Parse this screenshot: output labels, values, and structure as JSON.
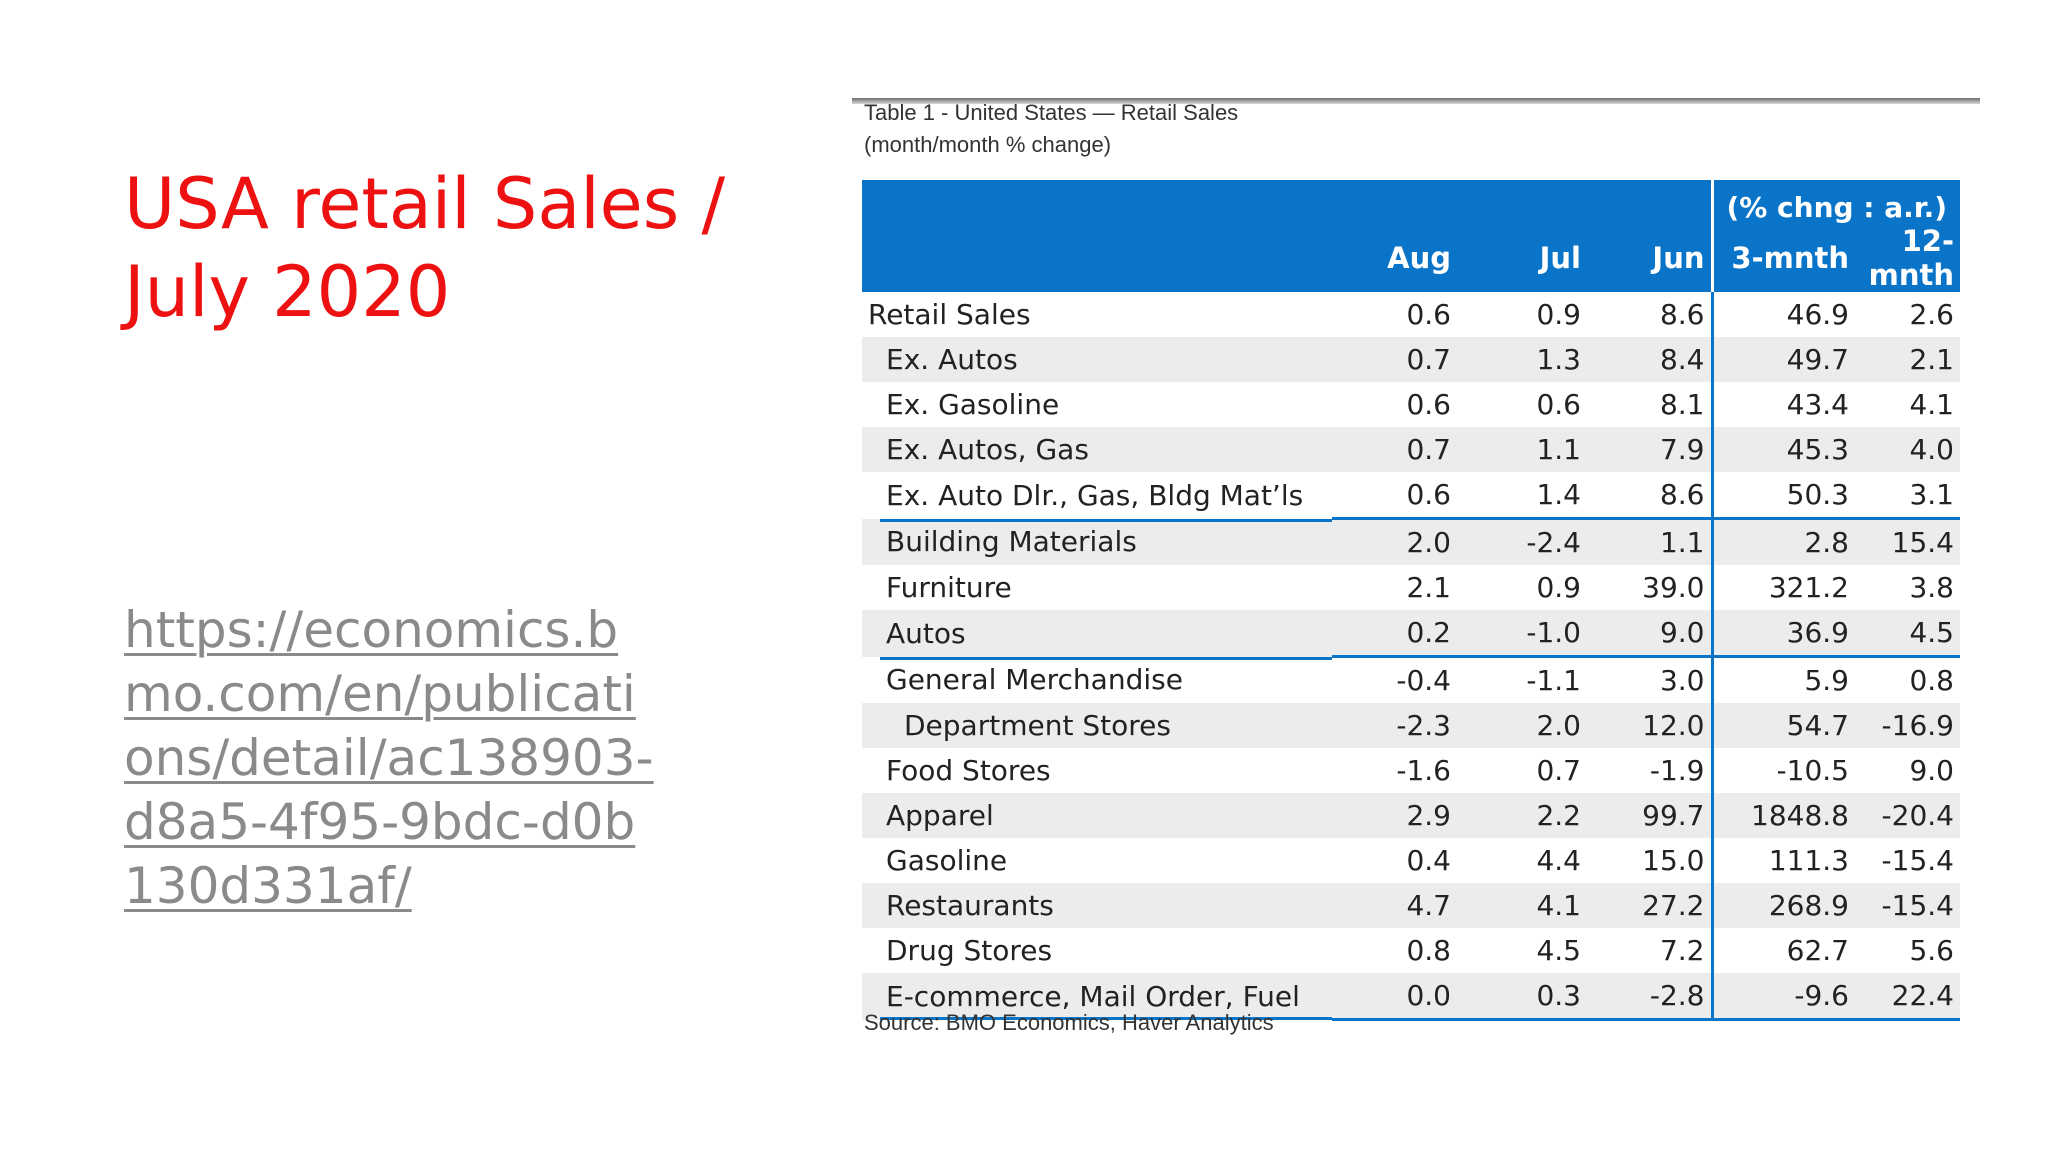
{
  "slide": {
    "title": "USA retail Sales / July 2020",
    "link": "https://economics.bmo.com/en/publications/detail/ac138903-d8a5-4f95-9bdc-d0b130d331af/"
  },
  "figure": {
    "caption_line1": "Table 1 - United States — Retail Sales",
    "caption_line2": "(month/month % change)",
    "source": "Source: BMO Economics, Haver Analytics"
  },
  "table": {
    "group_header": "(% chng : a.r.)",
    "columns": [
      "Aug",
      "Jul",
      "Jun",
      "3-mnth",
      "12-mnth"
    ],
    "rows": [
      {
        "label": "Retail Sales",
        "values": [
          "0.6",
          "0.9",
          "8.6",
          "46.9",
          "2.6"
        ]
      },
      {
        "label": "Ex. Autos",
        "values": [
          "0.7",
          "1.3",
          "8.4",
          "49.7",
          "2.1"
        ]
      },
      {
        "label": "Ex. Gasoline",
        "values": [
          "0.6",
          "0.6",
          "8.1",
          "43.4",
          "4.1"
        ]
      },
      {
        "label": "Ex. Autos, Gas",
        "values": [
          "0.7",
          "1.1",
          "7.9",
          "45.3",
          "4.0"
        ]
      },
      {
        "label": "Ex. Auto Dlr., Gas, Bldg Mat’ls",
        "values": [
          "0.6",
          "1.4",
          "8.6",
          "50.3",
          "3.1"
        ]
      },
      {
        "label": "Building Materials",
        "values": [
          "2.0",
          "-2.4",
          "1.1",
          "2.8",
          "15.4"
        ]
      },
      {
        "label": "Furniture",
        "values": [
          "2.1",
          "0.9",
          "39.0",
          "321.2",
          "3.8"
        ]
      },
      {
        "label": "Autos",
        "values": [
          "0.2",
          "-1.0",
          "9.0",
          "36.9",
          "4.5"
        ]
      },
      {
        "label": "General Merchandise",
        "values": [
          "-0.4",
          "-1.1",
          "3.0",
          "5.9",
          "0.8"
        ]
      },
      {
        "label": "Department Stores",
        "values": [
          "-2.3",
          "2.0",
          "12.0",
          "54.7",
          "-16.9"
        ]
      },
      {
        "label": "Food Stores",
        "values": [
          "-1.6",
          "0.7",
          "-1.9",
          "-10.5",
          "9.0"
        ]
      },
      {
        "label": "Apparel",
        "values": [
          "2.9",
          "2.2",
          "99.7",
          "1848.8",
          "-20.4"
        ]
      },
      {
        "label": "Gasoline",
        "values": [
          "0.4",
          "4.4",
          "15.0",
          "111.3",
          "-15.4"
        ]
      },
      {
        "label": "Restaurants",
        "values": [
          "4.7",
          "4.1",
          "27.2",
          "268.9",
          "-15.4"
        ]
      },
      {
        "label": "Drug Stores",
        "values": [
          "0.8",
          "4.5",
          "7.2",
          "62.7",
          "5.6"
        ]
      },
      {
        "label": "E-commerce, Mail Order, Fuel",
        "values": [
          "0.0",
          "0.3",
          "-2.8",
          "-9.6",
          "22.4"
        ]
      }
    ]
  },
  "colors": {
    "title": "#ee1111",
    "link": "#8a8a8a",
    "table_header": "#0a74c9",
    "row_stripe": "#ececec"
  }
}
